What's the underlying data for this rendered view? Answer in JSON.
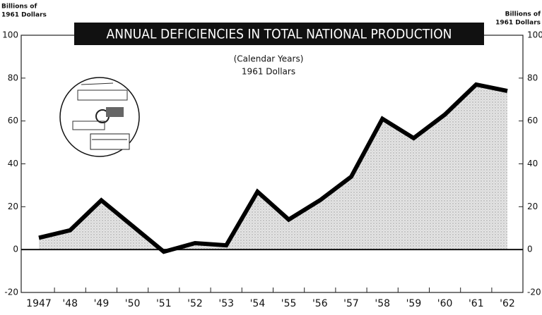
{
  "chart_data": {
    "type": "area-line",
    "title": "ANNUAL DEFICIENCIES IN TOTAL NATIONAL PRODUCTION",
    "subtitle": [
      "(Calendar Years)",
      "1961 Dollars"
    ],
    "y_label": [
      "Billions of",
      "1961 Dollars"
    ],
    "y2_label": [
      "Billions of",
      "1961 Dollars"
    ],
    "categories": [
      "1947",
      "'48",
      "'49",
      "'50",
      "'51",
      "'52",
      "'53",
      "'54",
      "'55",
      "'56",
      "'57",
      "'58",
      "'59",
      "'60",
      "'61",
      "'62"
    ],
    "values": [
      5.5,
      9,
      23,
      11,
      -1,
      3,
      2,
      27,
      14,
      23,
      34,
      61,
      52,
      63,
      77,
      74
    ],
    "color": "#000000",
    "fill": "#d9d9d9",
    "ylim": [
      -20,
      100
    ],
    "yticks": [
      -20,
      0,
      20,
      40,
      60,
      80,
      100
    ],
    "y2lim": [
      -20,
      100
    ],
    "y2ticks": [
      -20,
      0,
      20,
      40,
      60,
      80,
      100
    ]
  }
}
